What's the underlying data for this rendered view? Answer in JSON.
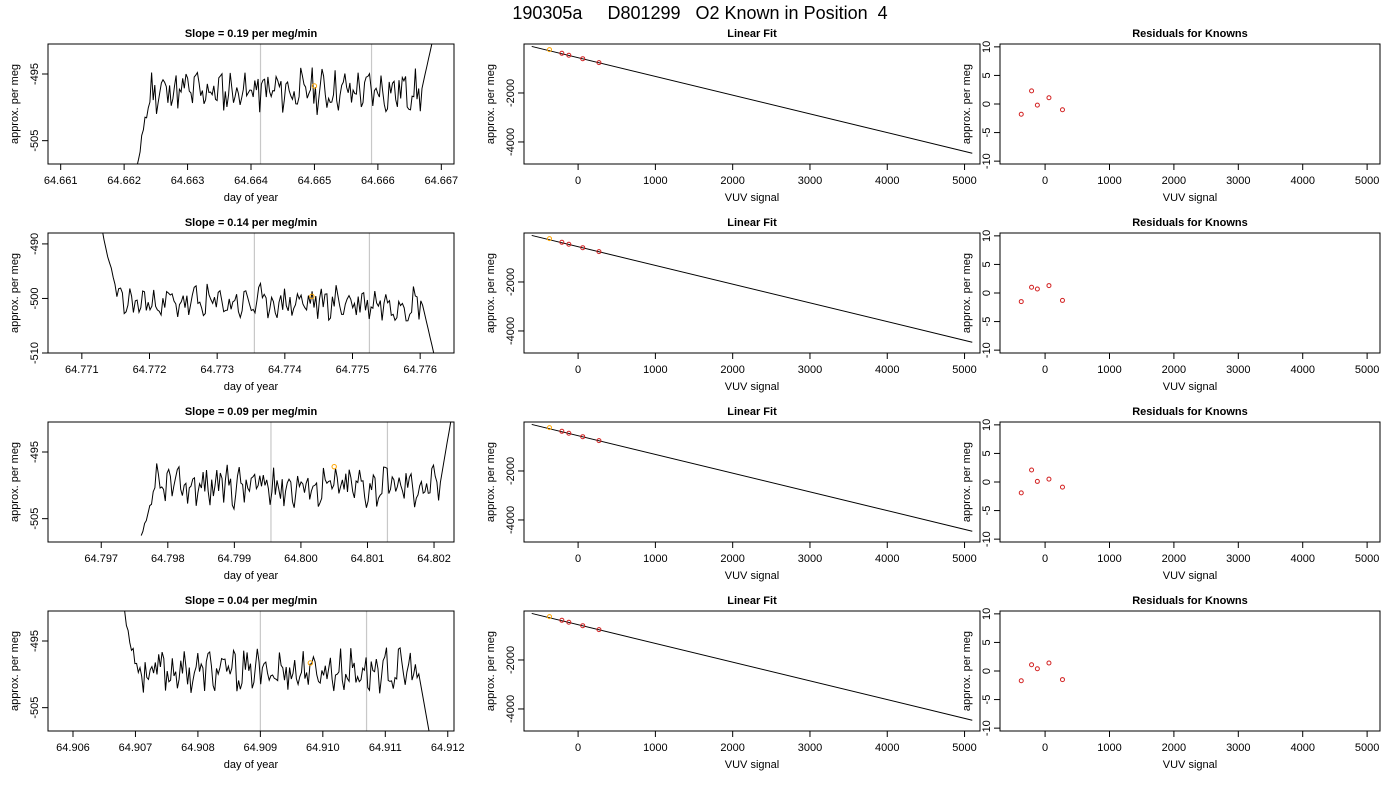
{
  "figure_title": "190305a     D801299   O2 Known in Position  4",
  "colors": {
    "line": "#000000",
    "frame": "#000000",
    "marker_grey": "#c8c8c8",
    "highlight": "#ffa500",
    "residual": "#d22020"
  },
  "chart_data": [
    {
      "type": "line",
      "title": "Slope =  0.19  per meg/min",
      "xlabel": "day of year",
      "ylabel": "approx. per meg",
      "xlim": [
        64.6608,
        64.6672
      ],
      "ylim": [
        -508.5,
        -490.5
      ],
      "xticks": [
        "64.661",
        "64.662",
        "64.663",
        "64.664",
        "64.665",
        "64.666",
        "64.667"
      ],
      "yticks": [
        "-495",
        "-505"
      ],
      "x_start": 64.6622,
      "x_end": 64.66685,
      "vlines": [
        64.66415,
        64.6659
      ],
      "highlight_point": {
        "x": 64.665,
        "y": -496.8
      },
      "seed": 11,
      "y_level": -497.5,
      "start_y": -508.5,
      "end_y": -490.5
    },
    {
      "type": "scatter",
      "title": "Linear Fit",
      "xlabel": "VUV signal",
      "ylabel": "approx. per meg",
      "xlim": [
        -700,
        5200
      ],
      "ylim": [
        -4900,
        0
      ],
      "xticks": [
        "0",
        "1000",
        "2000",
        "3000",
        "4000",
        "5000"
      ],
      "yticks": [
        "-2000",
        "-4000"
      ],
      "fit_line": [
        [
          -600,
          -100
        ],
        [
          5100,
          -4460
        ]
      ],
      "points": [
        [
          -370,
          -230
        ],
        [
          -210,
          -380
        ],
        [
          -120,
          -460
        ],
        [
          60,
          -600
        ],
        [
          270,
          -760
        ]
      ],
      "highlight_index": 0
    },
    {
      "type": "scatter",
      "title": "Residuals for Knowns",
      "xlabel": "VUV signal",
      "ylabel": "approx. per meg",
      "xlim": [
        -700,
        5200
      ],
      "ylim": [
        -10.5,
        10.5
      ],
      "xticks": [
        "0",
        "1000",
        "2000",
        "3000",
        "4000",
        "5000"
      ],
      "yticks": [
        "10",
        "5",
        "0",
        "-5",
        "-10"
      ],
      "points": [
        [
          -370,
          -1.8
        ],
        [
          -210,
          2.3
        ],
        [
          -120,
          -0.2
        ],
        [
          60,
          1.1
        ],
        [
          270,
          -1.0
        ]
      ]
    },
    {
      "type": "line",
      "title": "Slope =  0.14  per meg/min",
      "xlabel": "day of year",
      "ylabel": "approx. per meg",
      "xlim": [
        64.7705,
        64.7765
      ],
      "ylim": [
        -510,
        -488
      ],
      "xticks": [
        "64.771",
        "64.772",
        "64.773",
        "64.774",
        "64.775",
        "64.776"
      ],
      "yticks": [
        "-490",
        "-500",
        "-510"
      ],
      "x_start": 64.7713,
      "x_end": 64.7762,
      "vlines": [
        64.77355,
        64.77525
      ],
      "highlight_point": {
        "x": 64.7744,
        "y": -499.6
      },
      "seed": 23,
      "y_level": -500.8,
      "start_y": -488,
      "end_y": -510
    },
    {
      "type": "scatter",
      "title": "Linear Fit",
      "xlabel": "VUV signal",
      "ylabel": "approx. per meg",
      "xlim": [
        -700,
        5200
      ],
      "ylim": [
        -4900,
        0
      ],
      "xticks": [
        "0",
        "1000",
        "2000",
        "3000",
        "4000",
        "5000"
      ],
      "yticks": [
        "-2000",
        "-4000"
      ],
      "fit_line": [
        [
          -600,
          -100
        ],
        [
          5100,
          -4460
        ]
      ],
      "points": [
        [
          -370,
          -230
        ],
        [
          -210,
          -380
        ],
        [
          -120,
          -460
        ],
        [
          60,
          -600
        ],
        [
          270,
          -760
        ]
      ],
      "highlight_index": 0
    },
    {
      "type": "scatter",
      "title": "Residuals for Knowns",
      "xlabel": "VUV signal",
      "ylabel": "approx. per meg",
      "xlim": [
        -700,
        5200
      ],
      "ylim": [
        -10.5,
        10.5
      ],
      "xticks": [
        "0",
        "1000",
        "2000",
        "3000",
        "4000",
        "5000"
      ],
      "yticks": [
        "10",
        "5",
        "0",
        "-5",
        "-10"
      ],
      "points": [
        [
          -370,
          -1.5
        ],
        [
          -210,
          1.0
        ],
        [
          -120,
          0.7
        ],
        [
          60,
          1.3
        ],
        [
          270,
          -1.3
        ]
      ]
    },
    {
      "type": "line",
      "title": "Slope =  0.09  per meg/min",
      "xlabel": "day of year",
      "ylabel": "approx. per meg",
      "xlim": [
        64.7962,
        64.8023
      ],
      "ylim": [
        -508.5,
        -490.5
      ],
      "xticks": [
        "64.797",
        "64.798",
        "64.799",
        "64.800",
        "64.801",
        "64.802"
      ],
      "yticks": [
        "-495",
        "-505"
      ],
      "x_start": 64.7976,
      "x_end": 64.80225,
      "vlines": [
        64.79955,
        64.8013
      ],
      "highlight_point": {
        "x": 64.8005,
        "y": -497.2
      },
      "seed": 37,
      "y_level": -500.0,
      "start_y": -508.5,
      "end_y": -490.5
    },
    {
      "type": "scatter",
      "title": "Linear Fit",
      "xlabel": "VUV signal",
      "ylabel": "approx. per meg",
      "xlim": [
        -700,
        5200
      ],
      "ylim": [
        -4900,
        0
      ],
      "xticks": [
        "0",
        "1000",
        "2000",
        "3000",
        "4000",
        "5000"
      ],
      "yticks": [
        "-2000",
        "-4000"
      ],
      "fit_line": [
        [
          -600,
          -100
        ],
        [
          5100,
          -4460
        ]
      ],
      "points": [
        [
          -370,
          -230
        ],
        [
          -210,
          -380
        ],
        [
          -120,
          -460
        ],
        [
          60,
          -600
        ],
        [
          270,
          -760
        ]
      ],
      "highlight_index": 0
    },
    {
      "type": "scatter",
      "title": "Residuals for Knowns",
      "xlabel": "VUV signal",
      "ylabel": "approx. per meg",
      "xlim": [
        -700,
        5200
      ],
      "ylim": [
        -10.5,
        10.5
      ],
      "xticks": [
        "0",
        "1000",
        "2000",
        "3000",
        "4000",
        "5000"
      ],
      "yticks": [
        "10",
        "5",
        "0",
        "-5",
        "-10"
      ],
      "points": [
        [
          -370,
          -1.9
        ],
        [
          -210,
          2.1
        ],
        [
          -120,
          0.1
        ],
        [
          60,
          0.5
        ],
        [
          270,
          -0.9
        ]
      ]
    },
    {
      "type": "line",
      "title": "Slope =  0.04  per meg/min",
      "xlabel": "day of year",
      "ylabel": "approx. per meg",
      "xlim": [
        64.9056,
        64.9121
      ],
      "ylim": [
        -508.5,
        -490.5
      ],
      "xticks": [
        "64.906",
        "64.907",
        "64.908",
        "64.909",
        "64.910",
        "64.911",
        "64.912"
      ],
      "yticks": [
        "-495",
        "-505"
      ],
      "x_start": 64.9068,
      "x_end": 64.9117,
      "vlines": [
        64.909,
        64.9107
      ],
      "highlight_point": {
        "x": 64.9098,
        "y": -498.3
      },
      "seed": 53,
      "y_level": -499.5,
      "start_y": -490.5,
      "end_y": -508.5
    },
    {
      "type": "scatter",
      "title": "Linear Fit",
      "xlabel": "VUV signal",
      "ylabel": "approx. per meg",
      "xlim": [
        -700,
        5200
      ],
      "ylim": [
        -4900,
        0
      ],
      "xticks": [
        "0",
        "1000",
        "2000",
        "3000",
        "4000",
        "5000"
      ],
      "yticks": [
        "-2000",
        "-4000"
      ],
      "fit_line": [
        [
          -600,
          -100
        ],
        [
          5100,
          -4460
        ]
      ],
      "points": [
        [
          -370,
          -230
        ],
        [
          -210,
          -380
        ],
        [
          -120,
          -460
        ],
        [
          60,
          -600
        ],
        [
          270,
          -760
        ]
      ],
      "highlight_index": 0
    },
    {
      "type": "scatter",
      "title": "Residuals for Knowns",
      "xlabel": "VUV signal",
      "ylabel": "approx. per meg",
      "xlim": [
        -700,
        5200
      ],
      "ylim": [
        -10.5,
        10.5
      ],
      "xticks": [
        "0",
        "1000",
        "2000",
        "3000",
        "4000",
        "5000"
      ],
      "yticks": [
        "10",
        "5",
        "0",
        "-5",
        "-10"
      ],
      "points": [
        [
          -370,
          -1.7
        ],
        [
          -210,
          1.1
        ],
        [
          -120,
          0.4
        ],
        [
          60,
          1.4
        ],
        [
          270,
          -1.5
        ]
      ]
    }
  ]
}
